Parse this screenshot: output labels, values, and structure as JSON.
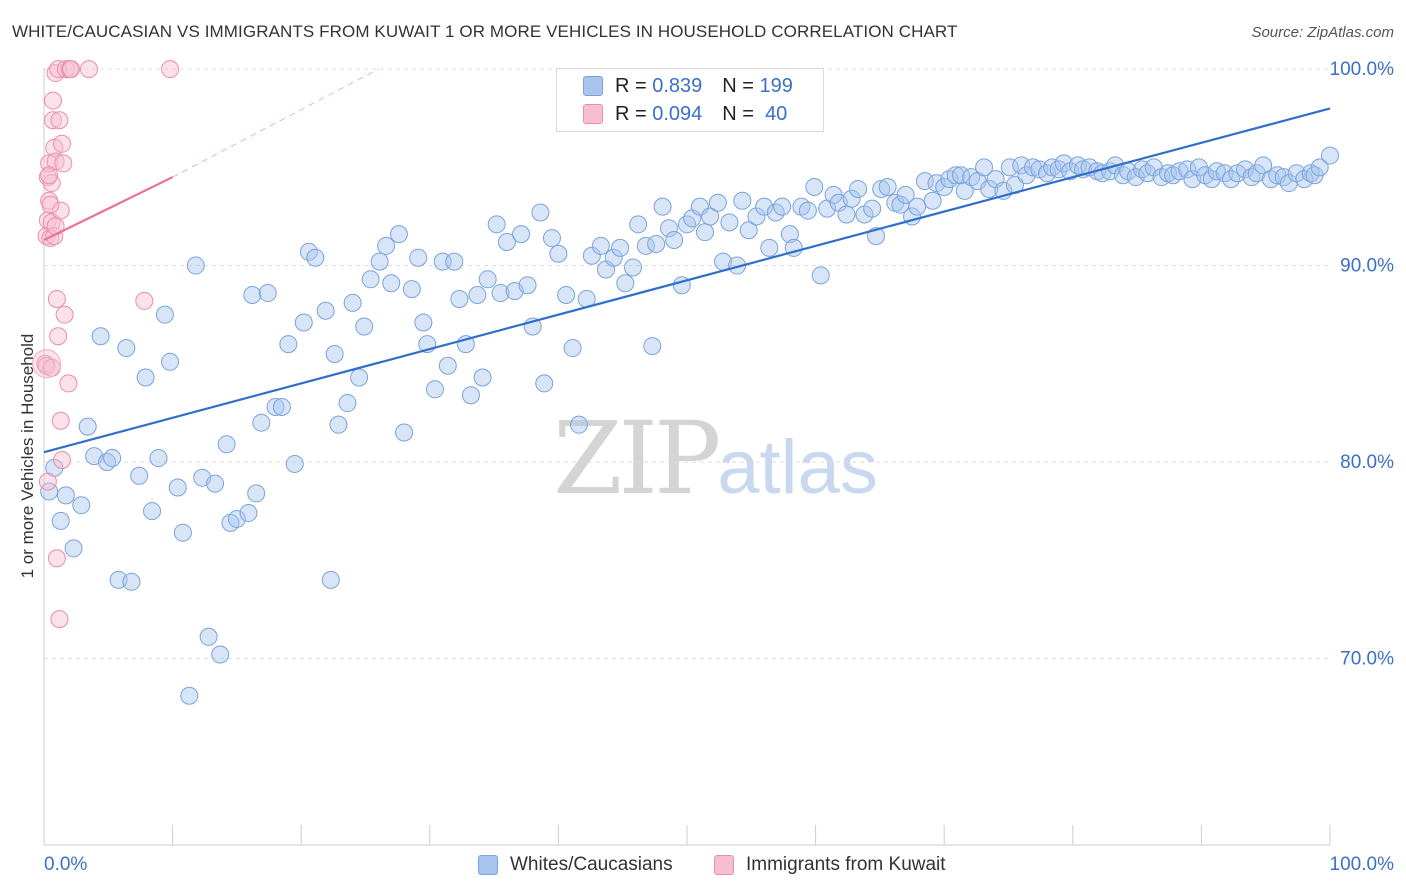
{
  "title": "WHITE/CAUCASIAN VS IMMIGRANTS FROM KUWAIT 1 OR MORE VEHICLES IN HOUSEHOLD CORRELATION CHART",
  "source": "Source: ZipAtlas.com",
  "watermark": {
    "zip": "ZIP",
    "atlas": "atlas"
  },
  "stats": [
    {
      "r_label": "R =",
      "r": "0.839",
      "n_label": "N =",
      "n": "199",
      "color": "#a9c5ee",
      "border": "#7aa3dd"
    },
    {
      "r_label": "R =",
      "r": "0.094",
      "n_label": "N =",
      "n": "40",
      "color": "#f6bed0",
      "border": "#ea8eab"
    }
  ],
  "legend": [
    {
      "label": "Whites/Caucasians",
      "color": "#a9c5ee",
      "border": "#7aa3dd"
    },
    {
      "label": "Immigrants from Kuwait",
      "color": "#f6bed0",
      "border": "#ea8eab"
    }
  ],
  "chart_data": {
    "type": "scatter",
    "title": "WHITE/CAUCASIAN VS IMMIGRANTS FROM KUWAIT 1 OR MORE VEHICLES IN HOUSEHOLD CORRELATION CHART",
    "xlabel": "",
    "ylabel": "1 or more Vehicles in Household",
    "xlim": [
      0,
      100
    ],
    "ylim": [
      60.5,
      101
    ],
    "x_tick_labels": [
      "0.0%",
      "100.0%"
    ],
    "y_ticks": [
      {
        "value": 70,
        "label": "70.0%"
      },
      {
        "value": 80,
        "label": "80.0%"
      },
      {
        "value": 90,
        "label": "90.0%"
      },
      {
        "value": 100,
        "label": "100.0%"
      }
    ],
    "grid": true,
    "series": [
      {
        "name": "Whites/Caucasians",
        "color": "#7aa3dd",
        "fill": "rgba(169,197,238,0.45)",
        "trend": {
          "x0": 0,
          "y0": 80.5,
          "x1": 100,
          "y1": 98.0,
          "color": "#2f6fcc"
        },
        "points": [
          [
            0.4,
            78.5
          ],
          [
            0.8,
            79.7
          ],
          [
            1.3,
            77.0
          ],
          [
            1.7,
            78.3
          ],
          [
            2.3,
            75.6
          ],
          [
            2.9,
            77.8
          ],
          [
            3.4,
            81.8
          ],
          [
            3.9,
            80.3
          ],
          [
            4.4,
            86.4
          ],
          [
            4.9,
            80.0
          ],
          [
            5.3,
            80.2
          ],
          [
            5.8,
            74.0
          ],
          [
            6.4,
            85.8
          ],
          [
            6.8,
            73.9
          ],
          [
            7.4,
            79.3
          ],
          [
            7.9,
            84.3
          ],
          [
            8.4,
            77.5
          ],
          [
            8.9,
            80.2
          ],
          [
            9.4,
            87.5
          ],
          [
            9.8,
            85.1
          ],
          [
            10.4,
            78.7
          ],
          [
            10.8,
            76.4
          ],
          [
            11.3,
            68.1
          ],
          [
            11.8,
            90.0
          ],
          [
            12.3,
            79.2
          ],
          [
            12.8,
            71.1
          ],
          [
            13.3,
            78.9
          ],
          [
            13.7,
            70.2
          ],
          [
            14.2,
            80.9
          ],
          [
            14.5,
            76.9
          ],
          [
            15.0,
            77.1
          ],
          [
            15.9,
            77.4
          ],
          [
            16.2,
            88.5
          ],
          [
            16.5,
            78.4
          ],
          [
            16.9,
            82.0
          ],
          [
            17.4,
            88.6
          ],
          [
            18.0,
            82.8
          ],
          [
            18.5,
            82.8
          ],
          [
            19.0,
            86.0
          ],
          [
            19.5,
            79.9
          ],
          [
            20.2,
            87.1
          ],
          [
            20.6,
            90.7
          ],
          [
            21.1,
            90.4
          ],
          [
            21.9,
            87.7
          ],
          [
            22.3,
            74.0
          ],
          [
            22.6,
            85.5
          ],
          [
            22.9,
            81.9
          ],
          [
            23.6,
            83.0
          ],
          [
            24.0,
            88.1
          ],
          [
            24.5,
            84.3
          ],
          [
            24.9,
            86.9
          ],
          [
            25.4,
            89.3
          ],
          [
            26.1,
            90.2
          ],
          [
            26.6,
            91.0
          ],
          [
            27.0,
            89.1
          ],
          [
            27.6,
            91.6
          ],
          [
            28.0,
            81.5
          ],
          [
            28.6,
            88.8
          ],
          [
            29.1,
            90.4
          ],
          [
            29.5,
            87.1
          ],
          [
            29.8,
            86.0
          ],
          [
            30.4,
            83.7
          ],
          [
            31.0,
            90.2
          ],
          [
            31.4,
            84.9
          ],
          [
            31.9,
            90.2
          ],
          [
            32.3,
            88.3
          ],
          [
            32.8,
            86.0
          ],
          [
            33.2,
            83.4
          ],
          [
            33.7,
            88.5
          ],
          [
            34.1,
            84.3
          ],
          [
            34.5,
            89.3
          ],
          [
            35.2,
            92.1
          ],
          [
            35.5,
            88.6
          ],
          [
            36.0,
            91.2
          ],
          [
            36.6,
            88.7
          ],
          [
            37.1,
            91.6
          ],
          [
            37.6,
            89.0
          ],
          [
            38.0,
            86.9
          ],
          [
            38.6,
            92.7
          ],
          [
            38.9,
            84.0
          ],
          [
            39.5,
            91.4
          ],
          [
            40.0,
            90.6
          ],
          [
            40.6,
            88.5
          ],
          [
            41.1,
            85.8
          ],
          [
            41.6,
            81.9
          ],
          [
            42.2,
            88.3
          ],
          [
            42.6,
            90.5
          ],
          [
            43.3,
            91.0
          ],
          [
            43.7,
            89.8
          ],
          [
            44.3,
            90.4
          ],
          [
            44.8,
            90.9
          ],
          [
            45.2,
            89.1
          ],
          [
            45.8,
            89.9
          ],
          [
            46.2,
            92.1
          ],
          [
            46.8,
            91.0
          ],
          [
            47.3,
            85.9
          ],
          [
            47.6,
            91.1
          ],
          [
            48.1,
            93.0
          ],
          [
            48.6,
            91.9
          ],
          [
            49.0,
            91.3
          ],
          [
            49.6,
            89.0
          ],
          [
            50.0,
            92.1
          ],
          [
            50.4,
            92.4
          ],
          [
            51.0,
            93.0
          ],
          [
            51.4,
            91.7
          ],
          [
            51.8,
            92.5
          ],
          [
            52.4,
            93.2
          ],
          [
            52.8,
            90.2
          ],
          [
            53.3,
            92.2
          ],
          [
            53.9,
            90.0
          ],
          [
            54.3,
            93.3
          ],
          [
            54.8,
            91.8
          ],
          [
            55.4,
            92.5
          ],
          [
            56.0,
            93.0
          ],
          [
            56.4,
            90.9
          ],
          [
            56.9,
            92.7
          ],
          [
            57.4,
            93.0
          ],
          [
            58.0,
            91.6
          ],
          [
            58.3,
            90.9
          ],
          [
            58.9,
            93.0
          ],
          [
            59.4,
            92.8
          ],
          [
            59.9,
            94.0
          ],
          [
            60.4,
            89.5
          ],
          [
            60.9,
            92.9
          ],
          [
            61.4,
            93.6
          ],
          [
            61.8,
            93.2
          ],
          [
            62.4,
            92.6
          ],
          [
            62.8,
            93.4
          ],
          [
            63.3,
            93.9
          ],
          [
            63.8,
            92.6
          ],
          [
            64.4,
            92.9
          ],
          [
            64.7,
            91.5
          ],
          [
            65.1,
            93.9
          ],
          [
            65.6,
            94.0
          ],
          [
            66.2,
            93.2
          ],
          [
            66.6,
            93.1
          ],
          [
            67.0,
            93.6
          ],
          [
            67.5,
            92.5
          ],
          [
            67.9,
            93.0
          ],
          [
            68.5,
            94.3
          ],
          [
            69.1,
            93.3
          ],
          [
            69.4,
            94.2
          ],
          [
            70.0,
            94.0
          ],
          [
            70.4,
            94.4
          ],
          [
            70.9,
            94.6
          ],
          [
            71.3,
            94.6
          ],
          [
            71.6,
            93.8
          ],
          [
            72.1,
            94.5
          ],
          [
            72.6,
            94.3
          ],
          [
            73.1,
            95.0
          ],
          [
            73.5,
            93.9
          ],
          [
            74.0,
            94.4
          ],
          [
            74.6,
            93.8
          ],
          [
            75.1,
            95.0
          ],
          [
            75.5,
            94.1
          ],
          [
            76.0,
            95.1
          ],
          [
            76.4,
            94.6
          ],
          [
            76.9,
            95.0
          ],
          [
            77.4,
            94.9
          ],
          [
            78.0,
            94.7
          ],
          [
            78.4,
            95.0
          ],
          [
            78.9,
            94.9
          ],
          [
            79.3,
            95.2
          ],
          [
            79.8,
            94.8
          ],
          [
            80.4,
            95.1
          ],
          [
            80.8,
            94.9
          ],
          [
            81.3,
            95.0
          ],
          [
            81.9,
            94.8
          ],
          [
            82.3,
            94.7
          ],
          [
            82.9,
            94.8
          ],
          [
            83.3,
            95.1
          ],
          [
            83.9,
            94.6
          ],
          [
            84.3,
            94.8
          ],
          [
            84.9,
            94.5
          ],
          [
            85.4,
            94.9
          ],
          [
            85.8,
            94.7
          ],
          [
            86.3,
            95.0
          ],
          [
            86.9,
            94.5
          ],
          [
            87.4,
            94.7
          ],
          [
            87.8,
            94.6
          ],
          [
            88.3,
            94.8
          ],
          [
            88.9,
            94.9
          ],
          [
            89.3,
            94.4
          ],
          [
            89.8,
            95.0
          ],
          [
            90.3,
            94.6
          ],
          [
            90.8,
            94.4
          ],
          [
            91.2,
            94.8
          ],
          [
            91.8,
            94.7
          ],
          [
            92.3,
            94.4
          ],
          [
            92.8,
            94.7
          ],
          [
            93.4,
            94.9
          ],
          [
            93.9,
            94.5
          ],
          [
            94.3,
            94.7
          ],
          [
            94.8,
            95.1
          ],
          [
            95.4,
            94.4
          ],
          [
            95.9,
            94.6
          ],
          [
            96.4,
            94.5
          ],
          [
            96.8,
            94.2
          ],
          [
            97.4,
            94.7
          ],
          [
            98.0,
            94.4
          ],
          [
            98.5,
            94.7
          ],
          [
            98.8,
            94.6
          ],
          [
            99.2,
            95.0
          ],
          [
            100.0,
            95.6
          ]
        ]
      },
      {
        "name": "Immigrants from Kuwait",
        "color": "#ea8eab",
        "fill": "rgba(246,190,208,0.45)",
        "trend": {
          "x0": 0,
          "y0": 91.3,
          "x1": 10,
          "y1": 94.5,
          "color": "#e8739a"
        },
        "trend_dashed": {
          "x0": 10,
          "y0": 94.5,
          "x1": 26,
          "y1": 100,
          "color": "#f0b0c4"
        },
        "points": [
          [
            0.1,
            85.0
          ],
          [
            0.2,
            91.5
          ],
          [
            0.3,
            92.3
          ],
          [
            0.3,
            94.5
          ],
          [
            0.4,
            95.2
          ],
          [
            0.4,
            93.3
          ],
          [
            0.5,
            91.4
          ],
          [
            0.6,
            92.2
          ],
          [
            0.6,
            94.2
          ],
          [
            0.7,
            97.4
          ],
          [
            0.7,
            98.4
          ],
          [
            0.8,
            96.0
          ],
          [
            0.9,
            99.8
          ],
          [
            0.9,
            95.3
          ],
          [
            1.0,
            88.3
          ],
          [
            1.0,
            75.1
          ],
          [
            1.1,
            100.0
          ],
          [
            1.2,
            97.4
          ],
          [
            1.3,
            92.8
          ],
          [
            1.3,
            82.1
          ],
          [
            1.4,
            96.2
          ],
          [
            1.5,
            95.2
          ],
          [
            1.6,
            87.5
          ],
          [
            1.7,
            100.0
          ],
          [
            1.9,
            84.0
          ],
          [
            2.0,
            100.0
          ],
          [
            2.1,
            100.0
          ],
          [
            3.5,
            100.0
          ],
          [
            7.8,
            88.2
          ],
          [
            9.8,
            100.0
          ],
          [
            0.2,
            84.9
          ],
          [
            0.5,
            93.1
          ],
          [
            0.8,
            91.5
          ],
          [
            1.1,
            86.4
          ],
          [
            1.2,
            72.0
          ],
          [
            0.3,
            79.0
          ],
          [
            1.4,
            80.1
          ],
          [
            0.6,
            84.8
          ],
          [
            0.9,
            92.0
          ],
          [
            0.4,
            94.6
          ]
        ]
      }
    ]
  }
}
